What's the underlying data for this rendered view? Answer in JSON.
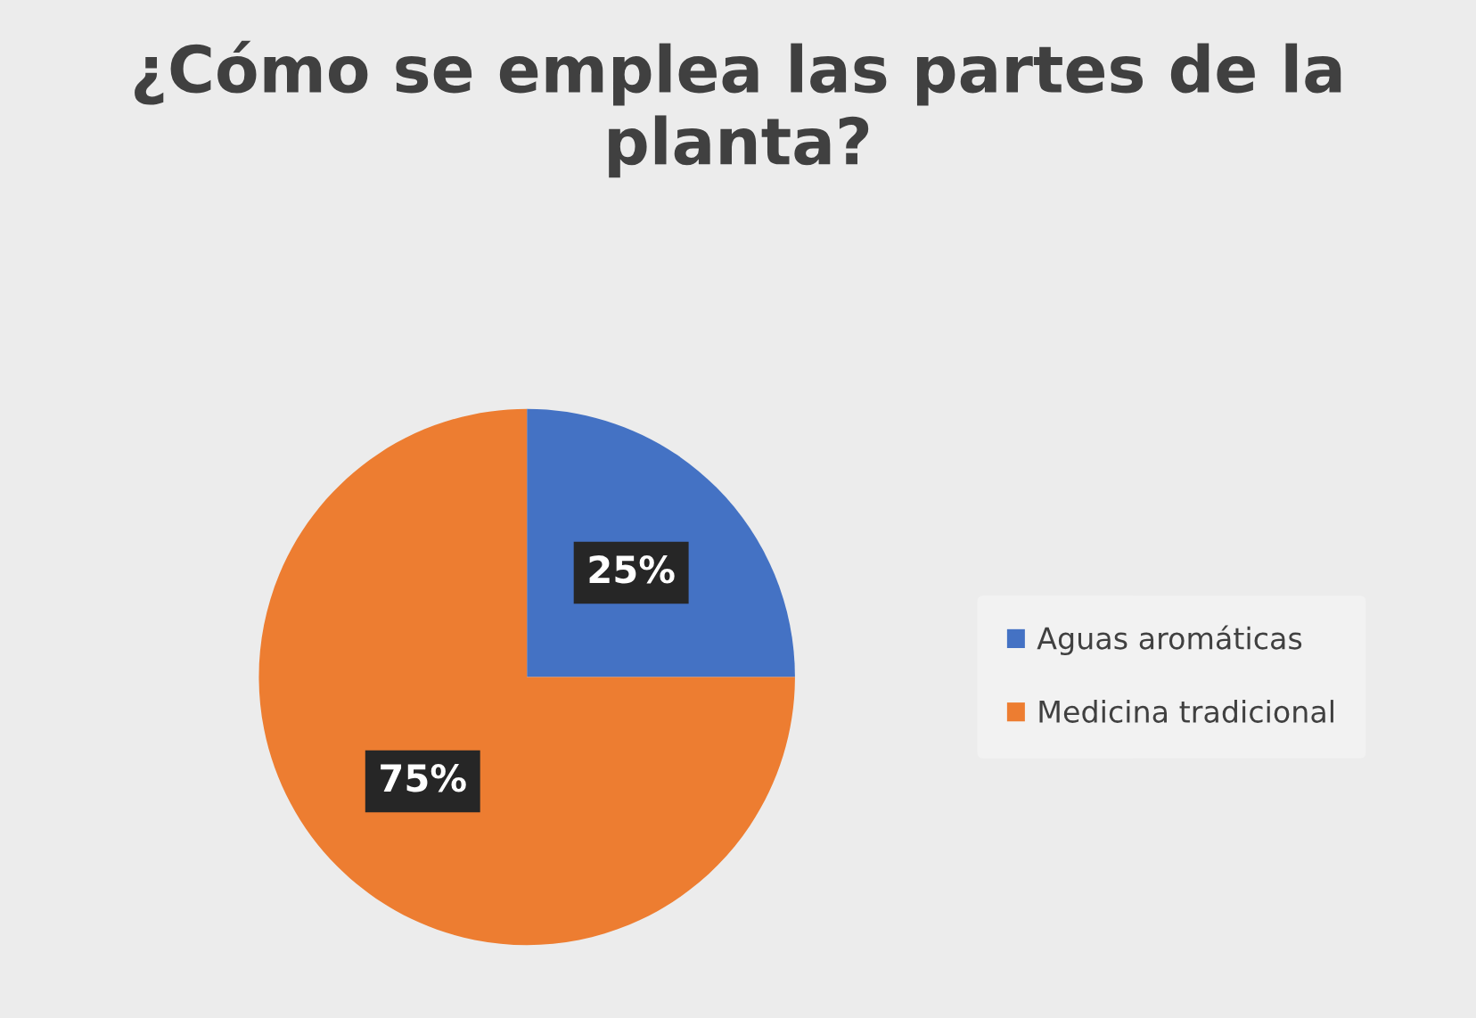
{
  "chart_data": {
    "type": "pie",
    "title": "¿Cómo se emplea las partes de la planta?",
    "categories": [
      "Aguas aromáticas",
      "Medicina tradicional"
    ],
    "values": [
      25,
      75
    ],
    "colors": [
      "#4472c4",
      "#ed7d31"
    ],
    "value_labels": [
      "25%",
      "75%"
    ],
    "legend": "right"
  }
}
